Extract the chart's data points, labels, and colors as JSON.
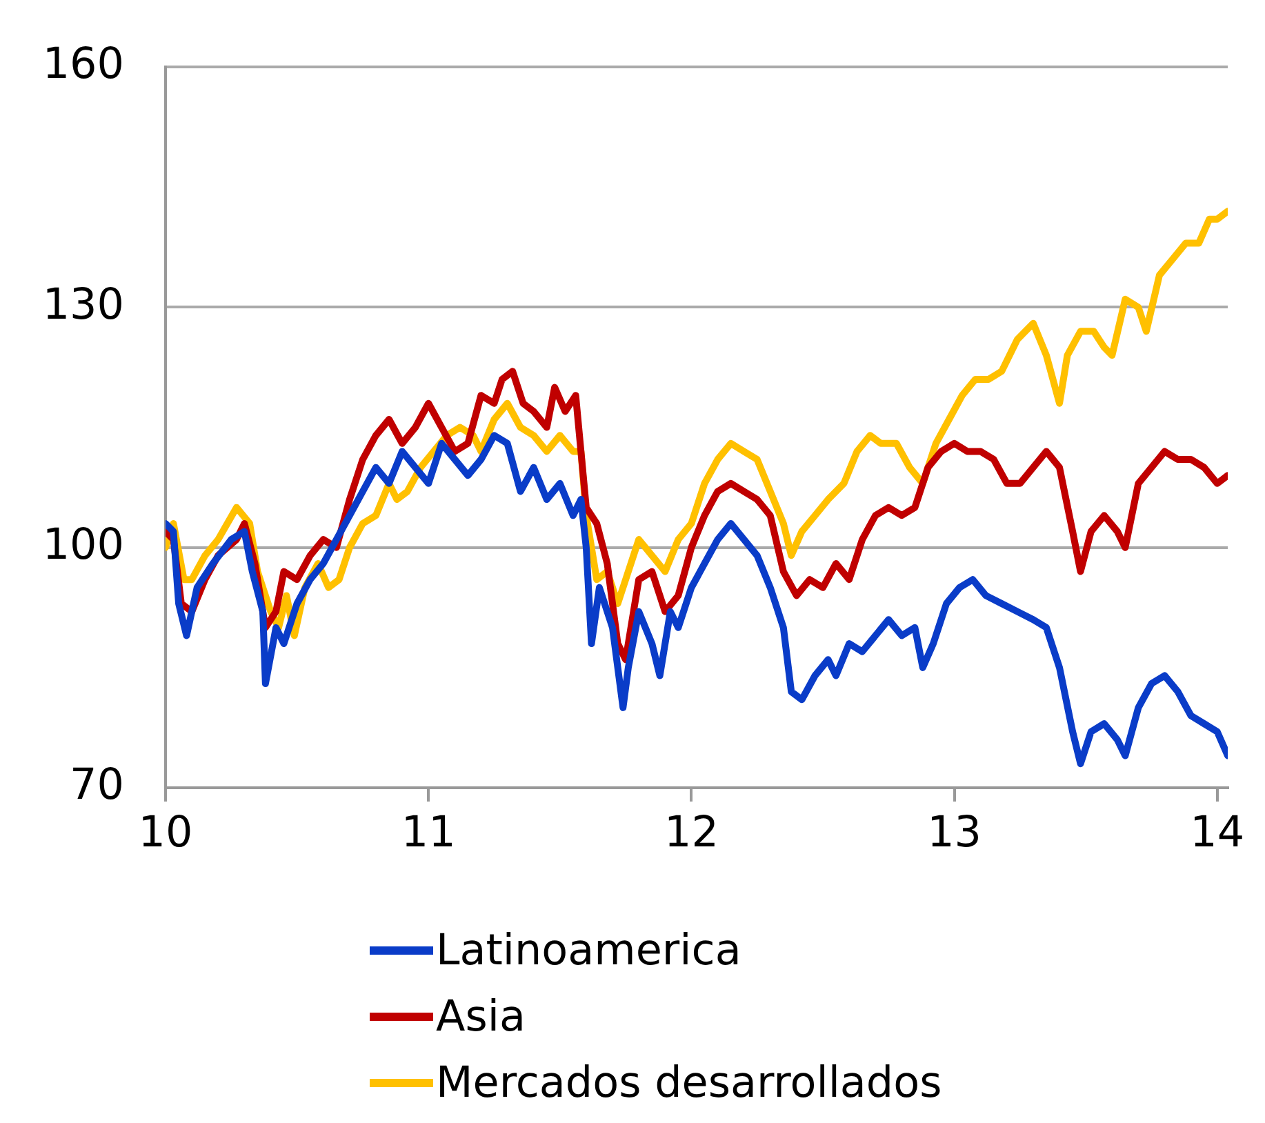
{
  "chart_data": {
    "type": "line",
    "xlim": [
      10,
      14.04
    ],
    "xticks": [
      10,
      11,
      12,
      13,
      14
    ],
    "ylim": [
      70,
      160
    ],
    "yticks": [
      70,
      100,
      130,
      160
    ],
    "grid": "y",
    "legend": "bottom",
    "marker": "none",
    "line_style": "solid",
    "series": [
      {
        "name": "Latinoamerica",
        "color": "#0a3cc8",
        "x": [
          10,
          10.03,
          10.05,
          10.08,
          10.12,
          10.18,
          10.25,
          10.3,
          10.33,
          10.37,
          10.38,
          10.42,
          10.45,
          10.5,
          10.55,
          10.6,
          10.65,
          10.7,
          10.75,
          10.8,
          10.85,
          10.9,
          10.95,
          11,
          11.05,
          11.1,
          11.15,
          11.2,
          11.25,
          11.3,
          11.35,
          11.4,
          11.45,
          11.5,
          11.55,
          11.58,
          11.6,
          11.62,
          11.65,
          11.7,
          11.74,
          11.76,
          11.8,
          11.85,
          11.88,
          11.92,
          11.95,
          12,
          12.05,
          12.1,
          12.15,
          12.2,
          12.25,
          12.3,
          12.35,
          12.38,
          12.42,
          12.47,
          12.52,
          12.55,
          12.6,
          12.65,
          12.7,
          12.75,
          12.8,
          12.85,
          12.88,
          12.92,
          12.97,
          13.02,
          13.07,
          13.12,
          13.18,
          13.24,
          13.3,
          13.35,
          13.4,
          13.45,
          13.48,
          13.52,
          13.57,
          13.62,
          13.65,
          13.7,
          13.75,
          13.8,
          13.85,
          13.9,
          13.95,
          14,
          14.04
        ],
        "values": [
          103,
          102,
          93,
          89,
          95,
          98,
          101,
          102,
          97,
          92,
          83,
          90,
          88,
          93,
          96,
          98,
          101,
          104,
          107,
          110,
          108,
          112,
          110,
          108,
          113,
          111,
          109,
          111,
          114,
          113,
          107,
          110,
          106,
          108,
          104,
          106,
          100,
          88,
          95,
          90,
          80,
          85,
          92,
          88,
          84,
          92,
          90,
          95,
          98,
          101,
          103,
          101,
          99,
          95,
          90,
          82,
          81,
          84,
          86,
          84,
          88,
          87,
          89,
          91,
          89,
          90,
          85,
          88,
          93,
          95,
          96,
          94,
          93,
          92,
          91,
          90,
          85,
          77,
          73,
          77,
          78,
          76,
          74,
          80,
          83,
          84,
          82,
          79,
          78,
          77,
          74
        ]
      },
      {
        "name": "Asia",
        "color": "#c00000",
        "x": [
          10,
          10.03,
          10.06,
          10.1,
          10.15,
          10.2,
          10.27,
          10.3,
          10.34,
          10.38,
          10.42,
          10.45,
          10.5,
          10.55,
          10.6,
          10.65,
          10.7,
          10.75,
          10.8,
          10.85,
          10.9,
          10.95,
          11,
          11.05,
          11.1,
          11.15,
          11.2,
          11.25,
          11.28,
          11.32,
          11.36,
          11.4,
          11.45,
          11.48,
          11.52,
          11.56,
          11.6,
          11.64,
          11.68,
          11.72,
          11.75,
          11.8,
          11.85,
          11.9,
          11.95,
          12,
          12.05,
          12.1,
          12.15,
          12.2,
          12.25,
          12.3,
          12.35,
          12.4,
          12.45,
          12.5,
          12.55,
          12.6,
          12.65,
          12.7,
          12.75,
          12.8,
          12.85,
          12.9,
          12.95,
          13,
          13.05,
          13.1,
          13.15,
          13.2,
          13.25,
          13.3,
          13.35,
          13.4,
          13.45,
          13.48,
          13.52,
          13.57,
          13.62,
          13.65,
          13.7,
          13.75,
          13.8,
          13.85,
          13.9,
          13.95,
          14,
          14.04
        ],
        "values": [
          102,
          101,
          93,
          92,
          96,
          99,
          101,
          103,
          98,
          90,
          92,
          97,
          96,
          99,
          101,
          100,
          106,
          111,
          114,
          116,
          113,
          115,
          118,
          115,
          112,
          113,
          119,
          118,
          121,
          122,
          118,
          117,
          115,
          120,
          117,
          119,
          105,
          103,
          98,
          88,
          86,
          96,
          97,
          92,
          94,
          100,
          104,
          107,
          108,
          107,
          106,
          104,
          97,
          94,
          96,
          95,
          98,
          96,
          101,
          104,
          105,
          104,
          105,
          110,
          112,
          113,
          112,
          112,
          111,
          108,
          108,
          110,
          112,
          110,
          102,
          97,
          102,
          104,
          102,
          100,
          108,
          110,
          112,
          111,
          111,
          110,
          108,
          109
        ]
      },
      {
        "name": "Mercados desarrollados",
        "color": "#ffc000",
        "x": [
          10,
          10.03,
          10.07,
          10.1,
          10.15,
          10.2,
          10.27,
          10.32,
          10.35,
          10.4,
          10.43,
          10.46,
          10.49,
          10.53,
          10.58,
          10.62,
          10.66,
          10.7,
          10.75,
          10.8,
          10.85,
          10.88,
          10.92,
          10.97,
          11.02,
          11.07,
          11.12,
          11.17,
          11.2,
          11.25,
          11.3,
          11.35,
          11.4,
          11.45,
          11.5,
          11.55,
          11.58,
          11.6,
          11.64,
          11.68,
          11.72,
          11.76,
          11.8,
          11.85,
          11.9,
          11.95,
          12,
          12.05,
          12.1,
          12.15,
          12.2,
          12.25,
          12.3,
          12.35,
          12.38,
          12.42,
          12.47,
          12.52,
          12.58,
          12.63,
          12.68,
          12.72,
          12.78,
          12.83,
          12.88,
          12.93,
          12.98,
          13.03,
          13.08,
          13.13,
          13.18,
          13.24,
          13.3,
          13.35,
          13.4,
          13.43,
          13.48,
          13.53,
          13.57,
          13.6,
          13.65,
          13.7,
          13.73,
          13.78,
          13.83,
          13.88,
          13.93,
          13.97,
          14,
          14.04
        ],
        "values": [
          100,
          103,
          96,
          96,
          99,
          101,
          105,
          103,
          97,
          92,
          90,
          94,
          89,
          95,
          98,
          95,
          96,
          100,
          103,
          104,
          108,
          106,
          107,
          110,
          112,
          114,
          115,
          114,
          112,
          116,
          118,
          115,
          114,
          112,
          114,
          112,
          112,
          104,
          96,
          97,
          93,
          97,
          101,
          99,
          97,
          101,
          103,
          108,
          111,
          113,
          112,
          111,
          107,
          103,
          99,
          102,
          104,
          106,
          108,
          112,
          114,
          113,
          113,
          110,
          108,
          113,
          116,
          119,
          121,
          121,
          122,
          126,
          128,
          124,
          118,
          124,
          127,
          127,
          125,
          124,
          131,
          130,
          127,
          134,
          136,
          138,
          138,
          141,
          141,
          142
        ]
      }
    ]
  }
}
